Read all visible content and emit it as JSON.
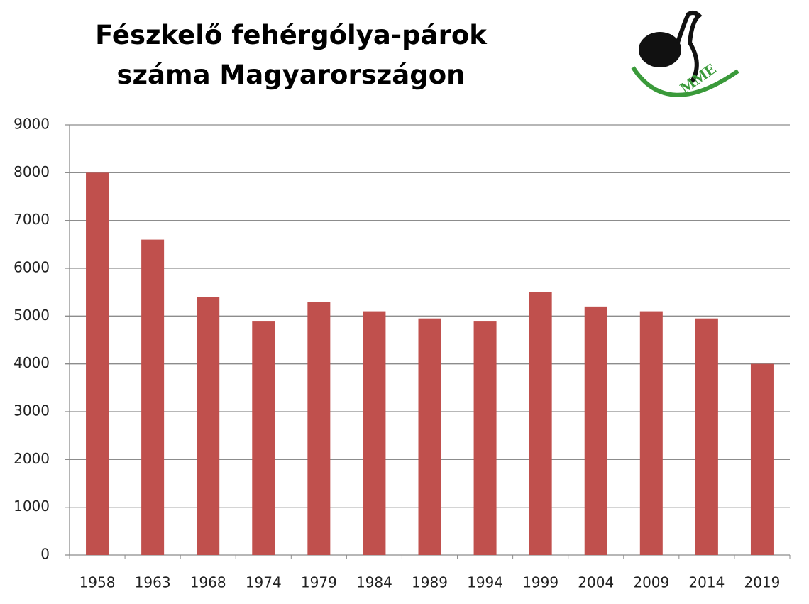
{
  "chart_data": {
    "type": "bar",
    "title": "Fészkelő fehérgólya-párok száma Magyarországon",
    "logo_text": "MME",
    "categories": [
      "1958",
      "1963",
      "1968",
      "1974",
      "1979",
      "1984",
      "1989",
      "1994",
      "1999",
      "2004",
      "2009",
      "2014",
      "2019"
    ],
    "values": [
      8000,
      6600,
      5400,
      4900,
      5300,
      5100,
      4950,
      4900,
      5500,
      5200,
      5100,
      4950,
      4000
    ],
    "color": "#c0504d",
    "ylim": [
      0,
      9000
    ],
    "yticks": [
      0,
      1000,
      2000,
      3000,
      4000,
      5000,
      6000,
      7000,
      8000,
      9000
    ],
    "grid": true
  }
}
